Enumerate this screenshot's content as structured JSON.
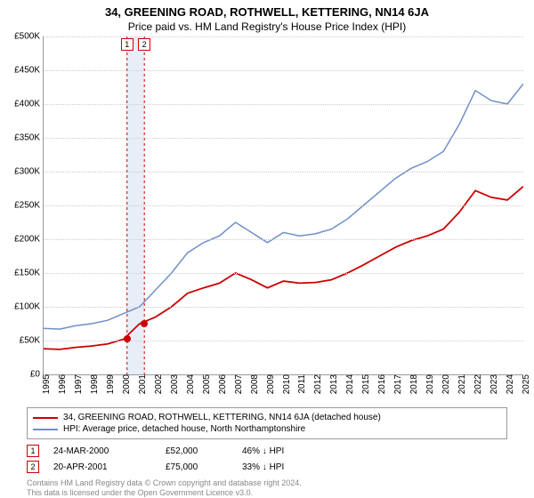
{
  "title": "34, GREENING ROAD, ROTHWELL, KETTERING, NN14 6JA",
  "subtitle": "Price paid vs. HM Land Registry's House Price Index (HPI)",
  "chart": {
    "type": "line",
    "ylim": [
      0,
      500000
    ],
    "ytick_step": 50000,
    "yticks": [
      "£0",
      "£50K",
      "£100K",
      "£150K",
      "£200K",
      "£250K",
      "£300K",
      "£350K",
      "£400K",
      "£450K",
      "£500K"
    ],
    "xyears": [
      1995,
      1996,
      1997,
      1998,
      1999,
      2000,
      2001,
      2002,
      2003,
      2004,
      2005,
      2006,
      2007,
      2008,
      2009,
      2010,
      2011,
      2012,
      2013,
      2014,
      2015,
      2016,
      2017,
      2018,
      2019,
      2020,
      2021,
      2022,
      2023,
      2024,
      2025
    ],
    "grid_color": "#cccccc",
    "axis_color": "#999999",
    "background_color": "#ffffff",
    "band": {
      "start_year": 2000.2,
      "end_year": 2001.3,
      "color": "#e8eef8"
    },
    "series": [
      {
        "name": "hpi",
        "color": "#6f8fc7",
        "width": 1.5,
        "points": [
          [
            1995,
            68000
          ],
          [
            1996,
            67000
          ],
          [
            1997,
            72000
          ],
          [
            1998,
            75000
          ],
          [
            1999,
            80000
          ],
          [
            2000,
            90000
          ],
          [
            2001,
            100000
          ],
          [
            2002,
            125000
          ],
          [
            2003,
            150000
          ],
          [
            2004,
            180000
          ],
          [
            2005,
            195000
          ],
          [
            2006,
            205000
          ],
          [
            2007,
            225000
          ],
          [
            2008,
            210000
          ],
          [
            2009,
            195000
          ],
          [
            2010,
            210000
          ],
          [
            2011,
            205000
          ],
          [
            2012,
            208000
          ],
          [
            2013,
            215000
          ],
          [
            2014,
            230000
          ],
          [
            2015,
            250000
          ],
          [
            2016,
            270000
          ],
          [
            2017,
            290000
          ],
          [
            2018,
            305000
          ],
          [
            2019,
            315000
          ],
          [
            2020,
            330000
          ],
          [
            2021,
            370000
          ],
          [
            2022,
            420000
          ],
          [
            2023,
            405000
          ],
          [
            2024,
            400000
          ],
          [
            2025,
            430000
          ]
        ]
      },
      {
        "name": "property",
        "color": "#cc0000",
        "width": 1.8,
        "points": [
          [
            1995,
            38000
          ],
          [
            1996,
            37000
          ],
          [
            1997,
            40000
          ],
          [
            1998,
            42000
          ],
          [
            1999,
            45000
          ],
          [
            2000,
            52000
          ],
          [
            2001,
            75000
          ],
          [
            2002,
            85000
          ],
          [
            2003,
            100000
          ],
          [
            2004,
            120000
          ],
          [
            2005,
            128000
          ],
          [
            2006,
            135000
          ],
          [
            2007,
            150000
          ],
          [
            2008,
            140000
          ],
          [
            2009,
            128000
          ],
          [
            2010,
            138000
          ],
          [
            2011,
            135000
          ],
          [
            2012,
            136000
          ],
          [
            2013,
            140000
          ],
          [
            2014,
            150000
          ],
          [
            2015,
            162000
          ],
          [
            2016,
            175000
          ],
          [
            2017,
            188000
          ],
          [
            2018,
            198000
          ],
          [
            2019,
            205000
          ],
          [
            2020,
            215000
          ],
          [
            2021,
            240000
          ],
          [
            2022,
            272000
          ],
          [
            2023,
            262000
          ],
          [
            2024,
            258000
          ],
          [
            2025,
            278000
          ]
        ]
      }
    ],
    "markers": [
      {
        "label": "1",
        "year": 2000.22,
        "value": 52000
      },
      {
        "label": "2",
        "year": 2001.3,
        "value": 75000
      }
    ]
  },
  "legend": {
    "items": [
      {
        "label": "34, GREENING ROAD, ROTHWELL, KETTERING, NN14 6JA (detached house)",
        "color": "#cc0000"
      },
      {
        "label": "HPI: Average price, detached house, North Northamptonshire",
        "color": "#6f8fc7"
      }
    ]
  },
  "transactions": [
    {
      "marker": "1",
      "date": "24-MAR-2000",
      "price": "£52,000",
      "delta": "46% ↓ HPI"
    },
    {
      "marker": "2",
      "date": "20-APR-2001",
      "price": "£75,000",
      "delta": "33% ↓ HPI"
    }
  ],
  "footer": {
    "line1": "Contains HM Land Registry data © Crown copyright and database right 2024.",
    "line2": "This data is licensed under the Open Government Licence v3.0."
  }
}
